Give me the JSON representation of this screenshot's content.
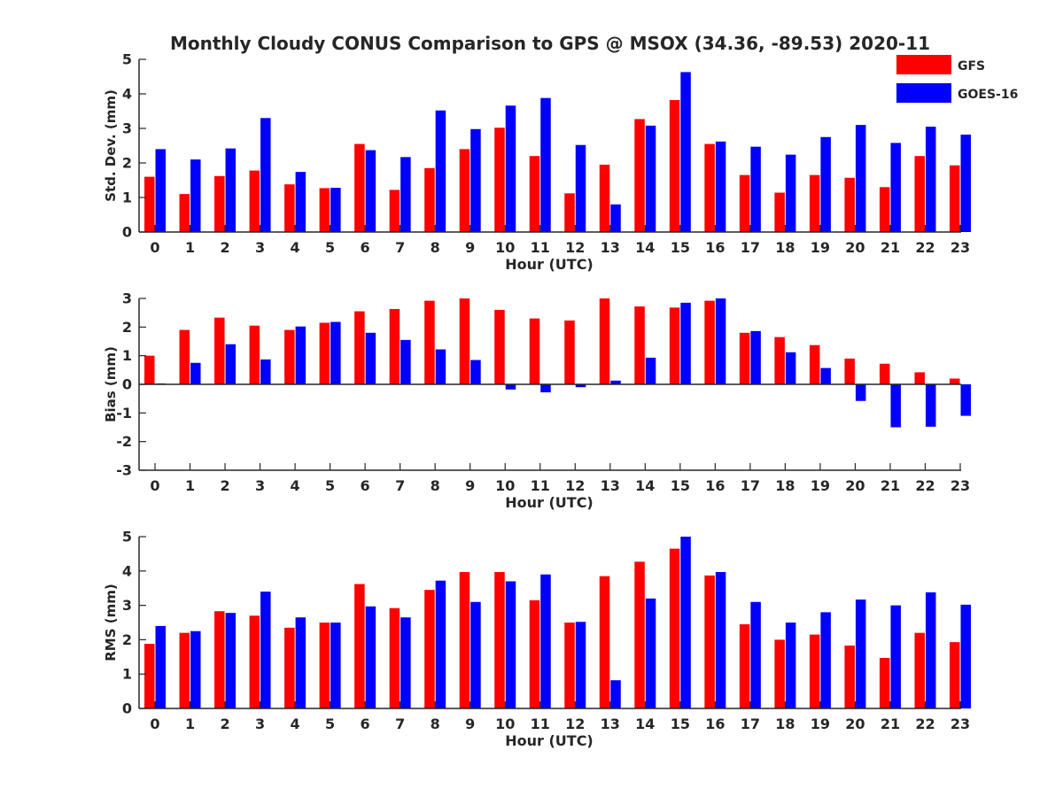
{
  "title": "Monthly Cloudy CONUS Comparison to GPS @ MSOX (34.36, -89.53) 2020-11",
  "legend": [
    {
      "label": "GFS",
      "color": "#ff0000"
    },
    {
      "label": "GOES-16",
      "color": "#0000ff"
    }
  ],
  "colors": {
    "gfs": "#ff0000",
    "goes": "#0000ff",
    "axis": "#262626"
  },
  "chart_data": [
    {
      "type": "bar",
      "title": "Monthly Cloudy CONUS Comparison to GPS @ MSOX (34.36, -89.53) 2020-11",
      "xlabel": "Hour (UTC)",
      "ylabel": "Std. Dev. (mm)",
      "ylim": [
        0,
        5
      ],
      "yticks": [
        0,
        1,
        2,
        3,
        4,
        5
      ],
      "categories": [
        "0",
        "1",
        "2",
        "3",
        "4",
        "5",
        "6",
        "7",
        "8",
        "9",
        "10",
        "11",
        "12",
        "13",
        "14",
        "15",
        "16",
        "17",
        "18",
        "19",
        "20",
        "21",
        "22",
        "23"
      ],
      "grid": false,
      "legend_position": "top-right",
      "series": [
        {
          "name": "GFS",
          "values": [
            1.6,
            1.1,
            1.62,
            1.78,
            1.38,
            1.27,
            2.55,
            1.22,
            1.85,
            2.4,
            3.02,
            2.2,
            1.12,
            1.95,
            3.27,
            3.82,
            2.55,
            1.65,
            1.14,
            1.65,
            1.57,
            1.3,
            2.2,
            1.93
          ]
        },
        {
          "name": "GOES-16",
          "values": [
            2.4,
            2.1,
            2.42,
            3.3,
            1.74,
            1.28,
            2.37,
            2.17,
            3.52,
            2.98,
            3.66,
            3.88,
            2.52,
            0.8,
            3.08,
            4.63,
            2.62,
            2.47,
            2.24,
            2.75,
            3.1,
            2.58,
            3.05,
            2.82
          ]
        }
      ]
    },
    {
      "type": "bar",
      "xlabel": "Hour (UTC)",
      "ylabel": "Bias (mm)",
      "ylim": [
        -3,
        3
      ],
      "yticks": [
        -3,
        -2,
        -1,
        0,
        1,
        2,
        3
      ],
      "categories": [
        "0",
        "1",
        "2",
        "3",
        "4",
        "5",
        "6",
        "7",
        "8",
        "9",
        "10",
        "11",
        "12",
        "13",
        "14",
        "15",
        "16",
        "17",
        "18",
        "19",
        "20",
        "21",
        "22",
        "23"
      ],
      "grid": false,
      "series": [
        {
          "name": "GFS",
          "values": [
            1.0,
            1.9,
            2.33,
            2.05,
            1.9,
            2.15,
            2.55,
            2.63,
            2.92,
            3.0,
            2.6,
            2.3,
            2.23,
            3.0,
            2.72,
            2.68,
            2.92,
            1.8,
            1.65,
            1.37,
            0.9,
            0.72,
            0.42,
            0.2
          ]
        },
        {
          "name": "GOES-16",
          "values": [
            0.03,
            0.75,
            1.4,
            0.87,
            2.02,
            2.18,
            1.8,
            1.55,
            1.22,
            0.85,
            -0.18,
            -0.28,
            -0.1,
            0.13,
            0.93,
            2.85,
            3.0,
            1.86,
            1.12,
            0.57,
            -0.58,
            -1.5,
            -1.48,
            -1.1
          ]
        }
      ]
    },
    {
      "type": "bar",
      "xlabel": "Hour (UTC)",
      "ylabel": "RMS (mm)",
      "ylim": [
        0,
        5
      ],
      "yticks": [
        0,
        1,
        2,
        3,
        4,
        5
      ],
      "categories": [
        "0",
        "1",
        "2",
        "3",
        "4",
        "5",
        "6",
        "7",
        "8",
        "9",
        "10",
        "11",
        "12",
        "13",
        "14",
        "15",
        "16",
        "17",
        "18",
        "19",
        "20",
        "21",
        "22",
        "23"
      ],
      "grid": false,
      "series": [
        {
          "name": "GFS",
          "values": [
            1.88,
            2.2,
            2.83,
            2.7,
            2.35,
            2.5,
            3.62,
            2.92,
            3.45,
            3.97,
            3.97,
            3.15,
            2.5,
            3.85,
            4.27,
            4.65,
            3.87,
            2.45,
            2.0,
            2.15,
            1.83,
            1.47,
            2.2,
            1.93
          ]
        },
        {
          "name": "GOES-16",
          "values": [
            2.4,
            2.25,
            2.78,
            3.4,
            2.65,
            2.5,
            2.97,
            2.65,
            3.72,
            3.1,
            3.7,
            3.9,
            2.52,
            0.82,
            3.2,
            5.0,
            3.97,
            3.1,
            2.5,
            2.8,
            3.17,
            3.0,
            3.38,
            3.02
          ]
        }
      ]
    }
  ]
}
